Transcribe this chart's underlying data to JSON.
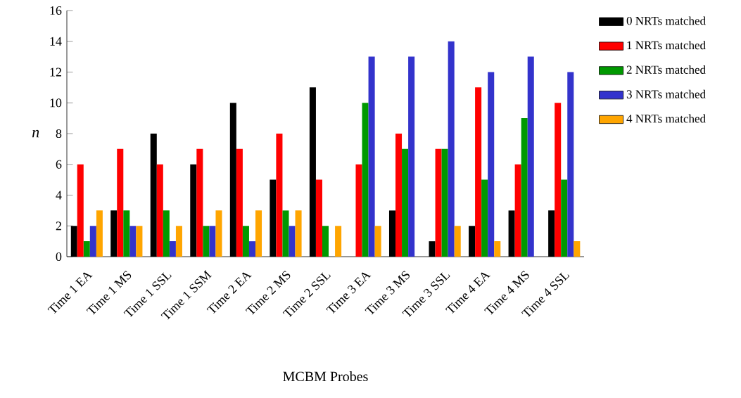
{
  "chart_data": {
    "type": "bar",
    "xlabel": "MCBM Probes",
    "ylabel": "n",
    "categories": [
      "Time 1 EA",
      "Time 1 MS",
      "Time 1 SSL",
      "Time 1 SSM",
      "Time 2 EA",
      "Time 2 MS",
      "Time 2 SSL",
      "Time 3 EA",
      "Time 3 MS",
      "Time 3 SSL",
      "Time 4 EA",
      "Time 4 MS",
      "Time 4 SSL"
    ],
    "series": [
      {
        "name": "0 NRTs matched",
        "color": "#000000",
        "values": [
          2,
          3,
          8,
          6,
          10,
          5,
          11,
          0,
          3,
          1,
          2,
          3,
          3
        ]
      },
      {
        "name": "1 NRTs matched",
        "color": "#ff0000",
        "values": [
          6,
          7,
          6,
          7,
          7,
          8,
          5,
          6,
          8,
          7,
          11,
          6,
          10
        ]
      },
      {
        "name": "2 NRTs matched",
        "color": "#009900",
        "values": [
          1,
          3,
          3,
          2,
          2,
          3,
          2,
          10,
          7,
          7,
          5,
          9,
          5
        ]
      },
      {
        "name": "3 NRTs matched",
        "color": "#3333cc",
        "values": [
          2,
          2,
          1,
          2,
          1,
          2,
          0,
          13,
          13,
          14,
          12,
          13,
          12
        ]
      },
      {
        "name": "4 NRTs matched",
        "color": "#ffa500",
        "values": [
          3,
          2,
          2,
          3,
          3,
          3,
          2,
          2,
          0,
          2,
          1,
          0,
          1
        ]
      }
    ],
    "ylim": [
      0,
      16
    ],
    "yticks": [
      0,
      2,
      4,
      6,
      8,
      10,
      12,
      14,
      16
    ],
    "legend": "right"
  }
}
